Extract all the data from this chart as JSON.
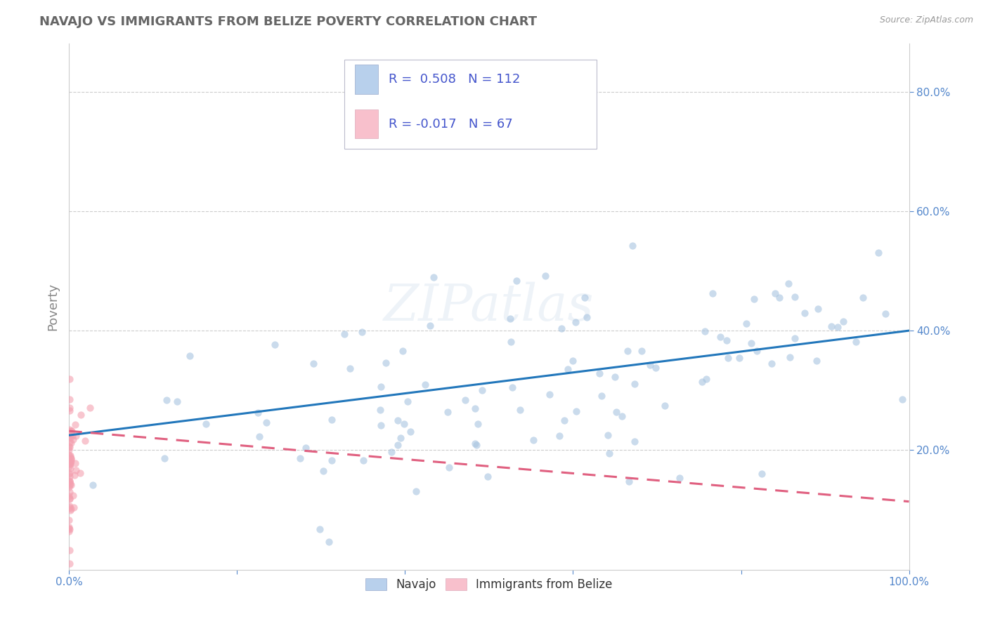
{
  "title": "NAVAJO VS IMMIGRANTS FROM BELIZE POVERTY CORRELATION CHART",
  "source": "Source: ZipAtlas.com",
  "ylabel": "Poverty",
  "xlim": [
    0.0,
    1.0
  ],
  "ylim": [
    0.0,
    0.88
  ],
  "xticks": [
    0.0,
    0.2,
    0.4,
    0.6,
    0.8,
    1.0
  ],
  "xticklabels": [
    "0.0%",
    "",
    "",
    "",
    "",
    "100.0%"
  ],
  "yticks": [
    0.2,
    0.4,
    0.6,
    0.8
  ],
  "yticklabels": [
    "20.0%",
    "40.0%",
    "60.0%",
    "80.0%"
  ],
  "navajo_color": "#a8c4e0",
  "belize_color": "#f4a0b0",
  "navajo_line_color": "#2277bb",
  "belize_line_color": "#e06080",
  "navajo_R": 0.508,
  "navajo_N": 112,
  "belize_R": -0.017,
  "belize_N": 67,
  "legend_navajo_color": "#b8d0ec",
  "legend_belize_color": "#f8c0cc",
  "watermark_text": "ZIPatlas",
  "background_color": "#ffffff",
  "grid_color": "#cccccc",
  "title_color": "#666666",
  "axis_label_color": "#888888",
  "tick_color": "#5588cc",
  "legend_text_color": "#4455cc",
  "dot_size": 55,
  "dot_alpha": 0.6,
  "line_width": 2.2,
  "navajo_line_intercept": 0.225,
  "navajo_line_slope": 0.175,
  "belize_line_intercept": 0.232,
  "belize_line_slope": -0.118
}
